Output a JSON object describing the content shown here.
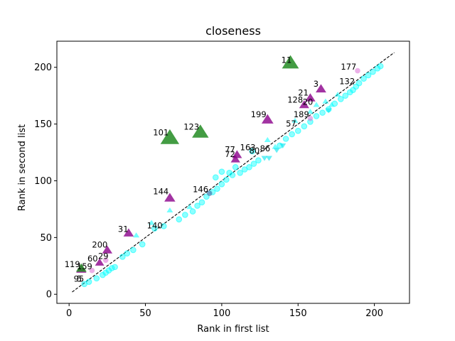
{
  "chart_data": {
    "type": "scatter",
    "title": "closeness",
    "xlabel": "Rank in first list",
    "ylabel": "Rank in second list",
    "xlim": [
      -8,
      223
    ],
    "ylim": [
      -8,
      223
    ],
    "xticks": [
      0,
      50,
      100,
      150,
      200
    ],
    "yticks": [
      0,
      50,
      100,
      150,
      200
    ],
    "grid": false,
    "reference_line": {
      "from": [
        2,
        2
      ],
      "to": [
        213,
        213
      ],
      "style": "dashed",
      "color": "#000000"
    },
    "colors": {
      "on_line": "#00ffff",
      "below": "#00e5ee",
      "small_gap": "#8b008b",
      "large_gap": "#228b22",
      "outlier_dot": "#4682b4"
    },
    "series": [
      {
        "marker": "circle",
        "color": "#00ffff",
        "points": [
          [
            10,
            9
          ],
          [
            13,
            11
          ],
          [
            18,
            14
          ],
          [
            22,
            17
          ],
          [
            24,
            19
          ],
          [
            26,
            21
          ],
          [
            28,
            23
          ],
          [
            30,
            24
          ],
          [
            35,
            33
          ],
          [
            38,
            36
          ],
          [
            42,
            39
          ],
          [
            48,
            44
          ],
          [
            56,
            58
          ],
          [
            62,
            60
          ],
          [
            72,
            66
          ],
          [
            76,
            70
          ],
          [
            81,
            73
          ],
          [
            84,
            78
          ],
          [
            87,
            81
          ],
          [
            90,
            86
          ],
          [
            94,
            90
          ],
          [
            97,
            93
          ],
          [
            100,
            97
          ],
          [
            103,
            101
          ],
          [
            107,
            105
          ],
          [
            112,
            107
          ],
          [
            115,
            110
          ],
          [
            118,
            112
          ],
          [
            121,
            115
          ],
          [
            124,
            118
          ],
          [
            138,
            131
          ],
          [
            142,
            137
          ],
          [
            146,
            141
          ],
          [
            150,
            144
          ],
          [
            154,
            148
          ],
          [
            158,
            152
          ],
          [
            162,
            157
          ],
          [
            166,
            160
          ],
          [
            170,
            163
          ],
          [
            174,
            168
          ],
          [
            178,
            172
          ],
          [
            181,
            175
          ],
          [
            184,
            178
          ],
          [
            186,
            180
          ],
          [
            188,
            183
          ],
          [
            190,
            186
          ],
          [
            193,
            190
          ],
          [
            196,
            193
          ],
          [
            199,
            196
          ],
          [
            202,
            199
          ],
          [
            204,
            201
          ],
          [
            105,
            107
          ],
          [
            109,
            112
          ],
          [
            96,
            103
          ],
          [
            100,
            108
          ],
          [
            120,
            126
          ]
        ]
      },
      {
        "marker": "triangle-up",
        "color": "#00ffff",
        "points": [
          [
            44,
            52
          ],
          [
            54,
            63
          ],
          [
            66,
            74
          ],
          [
            79,
            77
          ],
          [
            130,
            136
          ],
          [
            135,
            130
          ],
          [
            148,
            153
          ],
          [
            158,
            161
          ],
          [
            162,
            167
          ],
          [
            168,
            170
          ],
          [
            172,
            167
          ],
          [
            176,
            176
          ]
        ]
      },
      {
        "marker": "triangle-down",
        "color": "#00e5ee",
        "points": [
          [
            128,
            120
          ],
          [
            131,
            120
          ],
          [
            140,
            131
          ],
          [
            136,
            127
          ],
          [
            170,
            162
          ]
        ]
      },
      {
        "marker": "circle-purple",
        "color": "#da70d6",
        "points": [
          [
            15,
            21
          ],
          [
            24,
            30
          ],
          [
            158,
            155
          ],
          [
            189,
            197
          ]
        ]
      },
      {
        "marker": "triangle-up-purple",
        "color": "#8b008b",
        "points": [
          [
            8,
            22
          ],
          [
            20,
            28
          ],
          [
            25,
            39
          ],
          [
            39,
            54
          ],
          [
            66,
            85
          ],
          [
            109,
            119
          ],
          [
            110,
            123
          ],
          [
            130,
            154
          ],
          [
            154,
            167
          ],
          [
            158,
            173
          ],
          [
            165,
            181
          ]
        ]
      },
      {
        "marker": "triangle-up-green",
        "color": "#228b22",
        "points": [
          [
            8,
            23
          ],
          [
            66,
            138
          ],
          [
            86,
            143
          ],
          [
            145,
            204
          ]
        ]
      },
      {
        "marker": "circle-steelblue",
        "color": "#4682b4",
        "points": [
          [
            92,
            89
          ]
        ]
      }
    ],
    "annotations": [
      {
        "text": "11",
        "x": 139,
        "y": 204
      },
      {
        "text": "177",
        "x": 178,
        "y": 198
      },
      {
        "text": "3",
        "x": 160,
        "y": 183
      },
      {
        "text": "132",
        "x": 177,
        "y": 185
      },
      {
        "text": "21",
        "x": 150,
        "y": 175
      },
      {
        "text": "128",
        "x": 143,
        "y": 169
      },
      {
        "text": "20",
        "x": 153,
        "y": 167
      },
      {
        "text": "199",
        "x": 119,
        "y": 156
      },
      {
        "text": "189",
        "x": 147,
        "y": 156
      },
      {
        "text": "57",
        "x": 142,
        "y": 148
      },
      {
        "text": "101",
        "x": 55,
        "y": 140
      },
      {
        "text": "123",
        "x": 75,
        "y": 145
      },
      {
        "text": "163",
        "x": 112,
        "y": 127
      },
      {
        "text": "77",
        "x": 102,
        "y": 125
      },
      {
        "text": "72",
        "x": 102,
        "y": 121
      },
      {
        "text": "80",
        "x": 118,
        "y": 124
      },
      {
        "text": "86",
        "x": 125,
        "y": 126
      },
      {
        "text": "146",
        "x": 81,
        "y": 90
      },
      {
        "text": "144",
        "x": 55,
        "y": 88
      },
      {
        "text": "140",
        "x": 51,
        "y": 58
      },
      {
        "text": "31",
        "x": 32,
        "y": 55
      },
      {
        "text": "200",
        "x": 15,
        "y": 41
      },
      {
        "text": "60",
        "x": 12,
        "y": 29
      },
      {
        "text": "29",
        "x": 19,
        "y": 31
      },
      {
        "text": "119",
        "x": -3,
        "y": 24
      },
      {
        "text": "159",
        "x": 5,
        "y": 22
      },
      {
        "text": "95",
        "x": 3,
        "y": 11
      },
      {
        "text": "5",
        "x": 5,
        "y": 11
      }
    ]
  }
}
